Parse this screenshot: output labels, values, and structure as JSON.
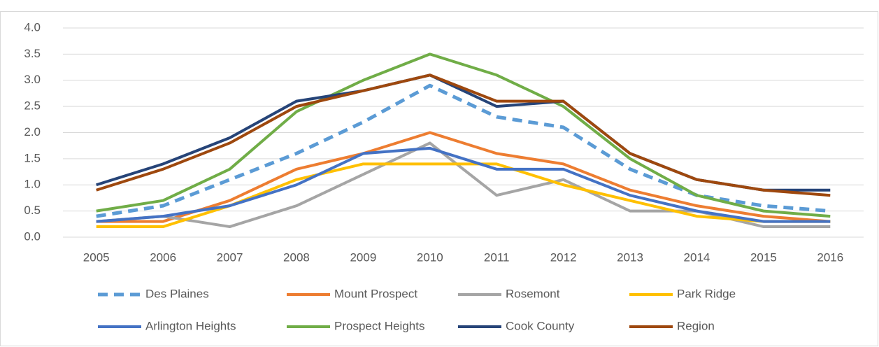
{
  "chart_data": {
    "type": "line",
    "categories": [
      "2005",
      "2006",
      "2007",
      "2008",
      "2009",
      "2010",
      "2011",
      "2012",
      "2013",
      "2014",
      "2015",
      "2016"
    ],
    "series": [
      {
        "name": "Des Plaines",
        "color": "#5b9bd5",
        "dashed": true,
        "values": [
          0.4,
          0.6,
          1.1,
          1.6,
          2.2,
          2.9,
          2.3,
          2.1,
          1.3,
          0.8,
          0.6,
          0.5
        ]
      },
      {
        "name": "Mount Prospect",
        "color": "#ed7d31",
        "values": [
          0.3,
          0.3,
          0.7,
          1.3,
          1.6,
          2.0,
          1.6,
          1.4,
          0.9,
          0.6,
          0.4,
          0.3
        ]
      },
      {
        "name": "Rosemont",
        "color": "#a5a5a5",
        "values": [
          0.3,
          0.4,
          0.2,
          0.6,
          1.2,
          1.8,
          0.8,
          1.1,
          0.5,
          0.5,
          0.2,
          0.2
        ]
      },
      {
        "name": "Park Ridge",
        "color": "#ffc000",
        "values": [
          0.2,
          0.2,
          0.6,
          1.1,
          1.4,
          1.4,
          1.4,
          1.0,
          0.7,
          0.4,
          0.3,
          0.3
        ]
      },
      {
        "name": "Arlington Heights",
        "color": "#4472c4",
        "values": [
          0.3,
          0.4,
          0.6,
          1.0,
          1.6,
          1.7,
          1.3,
          1.3,
          0.8,
          0.5,
          0.3,
          0.3
        ]
      },
      {
        "name": "Prospect Heights",
        "color": "#70ad47",
        "values": [
          0.5,
          0.7,
          1.3,
          2.4,
          3.0,
          3.5,
          3.1,
          2.5,
          1.5,
          0.8,
          0.5,
          0.4
        ]
      },
      {
        "name": "Cook County",
        "color": "#264478",
        "values": [
          1.0,
          1.4,
          1.9,
          2.6,
          2.8,
          3.1,
          2.5,
          2.6,
          1.6,
          1.1,
          0.9,
          0.9
        ]
      },
      {
        "name": "Region",
        "color": "#9e480e",
        "values": [
          0.9,
          1.3,
          1.8,
          2.5,
          2.8,
          3.1,
          2.6,
          2.6,
          1.6,
          1.1,
          0.9,
          0.8
        ]
      }
    ],
    "ylim": [
      0,
      4
    ],
    "yticks": [
      {
        "value": 0,
        "label": "0.0"
      },
      0.5,
      {
        "value": 1,
        "label": "1.0"
      },
      1.5,
      {
        "value": 2,
        "label": "2.0"
      },
      2.5,
      {
        "value": 3,
        "label": "3.0"
      },
      3.5,
      {
        "value": 4,
        "label": "4.0"
      }
    ],
    "grid": true,
    "legend": "bottom"
  }
}
